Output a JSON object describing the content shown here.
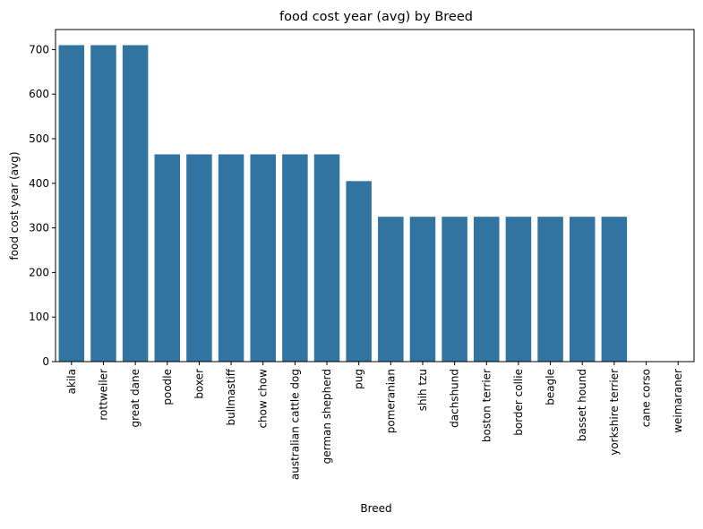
{
  "chart_data": {
    "type": "bar",
    "title": "food cost year (avg) by Breed",
    "xlabel": "Breed",
    "ylabel": "food cost year (avg)",
    "categories": [
      "akila",
      "rottweiler",
      "great dane",
      "poodle",
      "boxer",
      "bullmastiff",
      "chow chow",
      "australian cattle dog",
      "german shepherd",
      "pug",
      "pomeranian",
      "shih tzu",
      "dachshund",
      "boston terrier",
      "border collie",
      "beagle",
      "basset hound",
      "yorkshire terrier",
      "cane corso",
      "weimaraner"
    ],
    "values": [
      710,
      710,
      710,
      465,
      465,
      465,
      465,
      465,
      465,
      405,
      325,
      325,
      325,
      325,
      325,
      325,
      325,
      325,
      0,
      0
    ],
    "ylim": [
      0,
      745
    ],
    "yticks": [
      "0",
      "100",
      "200",
      "300",
      "400",
      "500",
      "600",
      "700"
    ],
    "bar_color": "#3274a1",
    "grid": false,
    "legend": "none"
  }
}
